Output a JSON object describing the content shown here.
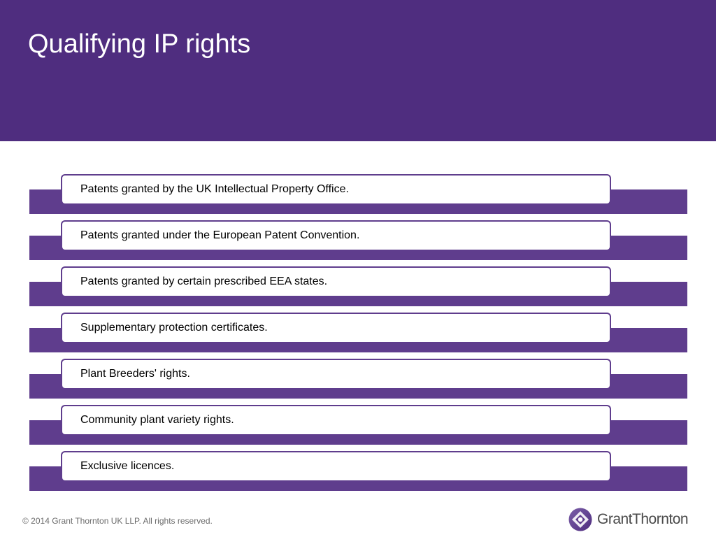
{
  "slide": {
    "title": "Qualifying IP rights"
  },
  "items": [
    {
      "label": "Patents granted by the UK Intellectual Property Office."
    },
    {
      "label": "Patents granted under the European Patent Convention."
    },
    {
      "label": "Patents granted by certain prescribed EEA states."
    },
    {
      "label": "Supplementary protection certificates."
    },
    {
      "label": "Plant Breeders' rights."
    },
    {
      "label": "Community plant variety rights."
    },
    {
      "label": "Exclusive licences."
    }
  ],
  "footer": {
    "copyright": "© 2014 Grant Thornton UK LLP. All rights reserved.",
    "logo_text": "GrantThornton"
  },
  "colors": {
    "brand_purple": "#4f2d7f",
    "bar_purple": "#5f3d8d"
  }
}
